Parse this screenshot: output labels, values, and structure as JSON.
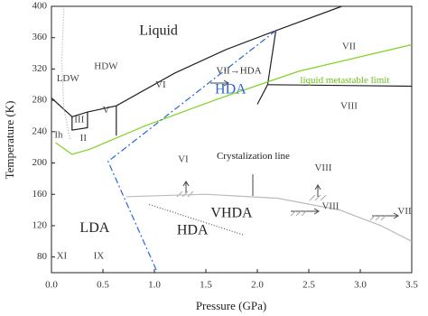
{
  "chart_data": {
    "type": "line",
    "x_label": "Pressure (GPa)",
    "y_label": "Temperature (K)",
    "xlim": [
      0,
      3.5
    ],
    "ylim": [
      60,
      400
    ],
    "xticks": [
      {
        "value": 0,
        "label": "0.0"
      },
      0.5,
      {
        "value": 1,
        "label": "1.0"
      },
      1.5,
      {
        "value": 2,
        "label": "2.0"
      },
      2.5,
      {
        "value": 3,
        "label": "3.0"
      },
      3.5
    ],
    "yticks": [
      80,
      120,
      160,
      200,
      240,
      280,
      320,
      360,
      400
    ],
    "series": [
      {
        "color": "#222222",
        "x": [
          0,
          0.2,
          0.35,
          0.63,
          1.2,
          1.7,
          2.18,
          2.82
        ],
        "values": [
          283,
          259,
          265,
          273,
          315,
          345,
          369,
          400
        ]
      },
      {
        "color": "#222222",
        "x": [
          0.2,
          0.2,
          0.35,
          0.35
        ],
        "values": [
          259,
          242,
          245,
          265
        ]
      },
      {
        "color": "#222222",
        "x": [
          0.63,
          0.63
        ],
        "values": [
          273,
          235
        ]
      },
      {
        "color": "#222222",
        "x": [
          2.18,
          2.1,
          2.0
        ],
        "values": [
          369,
          300,
          275
        ]
      },
      {
        "color": "#222222",
        "x": [
          2.1,
          3.5
        ],
        "values": [
          300,
          298
        ]
      },
      {
        "color": "#aaaaaa",
        "dash": "1,2",
        "x": [
          0.12,
          0.1,
          0.12,
          0.18
        ],
        "values": [
          397,
          330,
          270,
          230
        ]
      },
      {
        "color": "#7ed321",
        "x": [
          0.04,
          0.2,
          0.38,
          0.9,
          1.6,
          2.4,
          3.5
        ],
        "values": [
          226,
          211,
          218,
          247,
          281,
          317,
          351
        ]
      },
      {
        "color": "#2a66d8",
        "dash": "7,3,2,3",
        "x": [
          2.18,
          0.55,
          1.03
        ],
        "values": [
          369,
          202,
          60
        ]
      },
      {
        "color": "#bbbbbb",
        "x": [
          0.73,
          1.5,
          2.2,
          2.8,
          3.2,
          3.5
        ],
        "values": [
          157,
          160,
          155,
          140,
          120,
          100
        ]
      },
      {
        "color": "#555555",
        "dash": "1,2",
        "x": [
          0.95,
          1.87
        ],
        "values": [
          147,
          108
        ]
      }
    ],
    "annotations": [
      {
        "text": "Liquid",
        "x": 1.04,
        "y": 368,
        "color": "#222222"
      },
      {
        "text": "HDW",
        "x": 0.53,
        "y": 323,
        "color": "#444444"
      },
      {
        "text": "LDW",
        "x": 0.16,
        "y": 307,
        "color": "#444444"
      },
      {
        "text": "VI",
        "x": 1.06,
        "y": 299,
        "color": "#444444"
      },
      {
        "text": "VII",
        "x": 2.89,
        "y": 348,
        "color": "#444444"
      },
      {
        "text": "VIII",
        "x": 2.89,
        "y": 272,
        "color": "#444444"
      },
      {
        "text": "III",
        "x": 0.27,
        "y": 255,
        "color": "#444444"
      },
      {
        "text": "V",
        "x": 0.53,
        "y": 267,
        "color": "#444444"
      },
      {
        "text": "II",
        "x": 0.31,
        "y": 231,
        "color": "#444444"
      },
      {
        "text": "Ih",
        "x": 0.07,
        "y": 235,
        "color": "#444444"
      },
      {
        "text": "HDA",
        "x": 1.74,
        "y": 293,
        "color": "#2a66d8"
      },
      {
        "text": "VII→HDA",
        "x": 1.82,
        "y": 317,
        "color": "#333333"
      },
      {
        "text": "liquid metastable limit",
        "x": 2.85,
        "y": 305,
        "color": "#6cc01a"
      },
      {
        "text": "Crystalization line",
        "x": 1.96,
        "y": 208,
        "color": "#222222"
      },
      {
        "text": "VI",
        "x": 1.28,
        "y": 204,
        "color": "#444444"
      },
      {
        "text": "VIII",
        "x": 2.64,
        "y": 193,
        "color": "#444444"
      },
      {
        "text": "VIII",
        "x": 2.71,
        "y": 144,
        "color": "#444444"
      },
      {
        "text": "VII",
        "x": 3.43,
        "y": 138,
        "color": "#444444"
      },
      {
        "text": "LDA",
        "x": 0.42,
        "y": 116,
        "color": "#222222"
      },
      {
        "text": "HDA",
        "x": 1.37,
        "y": 113,
        "color": "#222222"
      },
      {
        "text": "VHDA",
        "x": 1.75,
        "y": 135,
        "color": "#222222"
      },
      {
        "text": "XI",
        "x": 0.1,
        "y": 81,
        "color": "#444444"
      },
      {
        "text": "IX",
        "x": 0.46,
        "y": 81,
        "color": "#444444"
      }
    ]
  }
}
